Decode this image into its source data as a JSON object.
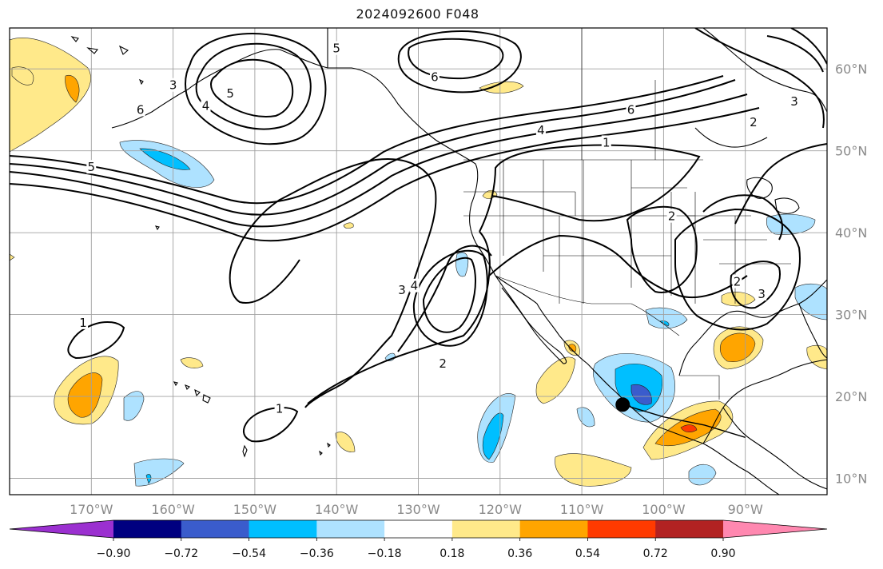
{
  "title": "2024092600 F048",
  "map": {
    "lon_ticks": [
      {
        "value": -170,
        "label": "170°W"
      },
      {
        "value": -160,
        "label": "160°W"
      },
      {
        "value": -150,
        "label": "150°W"
      },
      {
        "value": -140,
        "label": "140°W"
      },
      {
        "value": -130,
        "label": "130°W"
      },
      {
        "value": -120,
        "label": "120°W"
      },
      {
        "value": -110,
        "label": "110°W"
      },
      {
        "value": -100,
        "label": "100°W"
      },
      {
        "value": -90,
        "label": "90°W"
      }
    ],
    "lat_ticks": [
      {
        "value": 60,
        "label": "60°N"
      },
      {
        "value": 50,
        "label": "50°N"
      },
      {
        "value": 40,
        "label": "40°N"
      },
      {
        "value": 30,
        "label": "30°N"
      },
      {
        "value": 20,
        "label": "20°N"
      },
      {
        "value": 10,
        "label": "10°N"
      }
    ],
    "lon_range": [
      -180,
      -80
    ],
    "lat_range": [
      8,
      65
    ],
    "grid": true,
    "contour_labels": [
      {
        "text": "5",
        "lon": -153,
        "lat": 57
      },
      {
        "text": "3",
        "lon": -160,
        "lat": 58
      },
      {
        "text": "4",
        "lon": -156,
        "lat": 55.5
      },
      {
        "text": "6",
        "lon": -164,
        "lat": 55
      },
      {
        "text": "5",
        "lon": -140,
        "lat": 62.5
      },
      {
        "text": "6",
        "lon": -128,
        "lat": 59
      },
      {
        "text": "6",
        "lon": -104,
        "lat": 55
      },
      {
        "text": "4",
        "lon": -115,
        "lat": 52.5
      },
      {
        "text": "3",
        "lon": -84,
        "lat": 56
      },
      {
        "text": "2",
        "lon": -89,
        "lat": 53.5
      },
      {
        "text": "1",
        "lon": -107,
        "lat": 51
      },
      {
        "text": "2",
        "lon": -99,
        "lat": 42
      },
      {
        "text": "5",
        "lon": -170,
        "lat": 48
      },
      {
        "text": "3",
        "lon": -132,
        "lat": 33
      },
      {
        "text": "4",
        "lon": -130.5,
        "lat": 33.5
      },
      {
        "text": "2",
        "lon": -127,
        "lat": 24
      },
      {
        "text": "1",
        "lon": -171,
        "lat": 29
      },
      {
        "text": "1",
        "lon": -147,
        "lat": 18.5
      },
      {
        "text": "2",
        "lon": -91,
        "lat": 34
      },
      {
        "text": "3",
        "lon": -88,
        "lat": 32.5
      }
    ],
    "marker": {
      "name": "storm-center-marker",
      "lon": -105,
      "lat": 19
    },
    "track": [
      {
        "lon": -105,
        "lat": 19
      },
      {
        "lon": -100,
        "lat": 17.5
      },
      {
        "lon": -95,
        "lat": 16.5
      },
      {
        "lon": -90,
        "lat": 15
      }
    ]
  },
  "colorbar": {
    "tick_labels": [
      "−0.90",
      "−0.72",
      "−0.54",
      "−0.36",
      "−0.18",
      "0.18",
      "0.36",
      "0.54",
      "0.72",
      "0.90"
    ],
    "colors": [
      "#9b30d0",
      "#000080",
      "#3a5ccc",
      "#00bfff",
      "#aee2ff",
      "#ffffff",
      "#ffe98a",
      "#ffa500",
      "#ff3a00",
      "#b22222",
      "#ff88b0"
    ]
  }
}
